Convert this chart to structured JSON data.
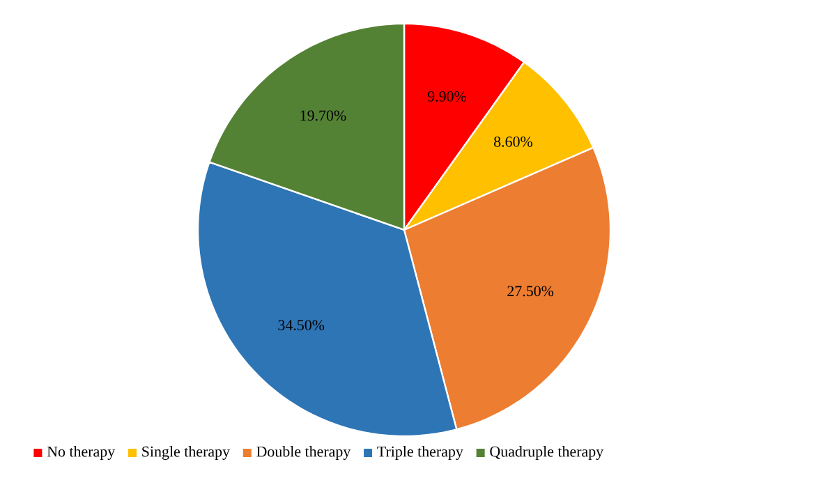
{
  "chart_data": {
    "type": "pie",
    "categories": [
      "No therapy",
      "Single therapy",
      "Double therapy",
      "Triple therapy",
      "Quadruple therapy"
    ],
    "values": [
      9.9,
      8.6,
      27.5,
      34.5,
      19.7
    ],
    "value_labels": [
      "9.90%",
      "8.60%",
      "27.50%",
      "34.50%",
      "19.70%"
    ],
    "colors": [
      "#ff0000",
      "#ffc000",
      "#ed7d31",
      "#2e75b6",
      "#548235"
    ],
    "legend": "bottom"
  }
}
